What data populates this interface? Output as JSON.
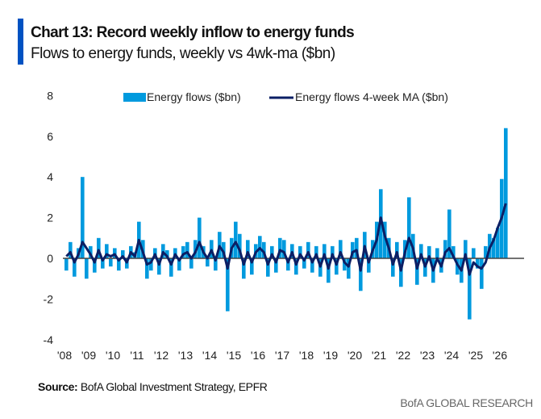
{
  "header": {
    "title": "Chart 13: Record weekly inflow to energy funds",
    "subtitle": "Flows to energy funds, weekly vs 4wk-ma ($bn)"
  },
  "footer": {
    "source_label": "Source:",
    "source_text": " BofA Global Investment Strategy, EPFR",
    "brand": "BofA GLOBAL RESEARCH"
  },
  "chart_data": {
    "type": "bar+line",
    "title": "Chart 13: Record weekly inflow to energy funds",
    "subtitle": "Flows to energy funds, weekly vs 4wk-ma ($bn)",
    "ylim": [
      -4,
      8
    ],
    "yticks": [
      8,
      6,
      4,
      2,
      0,
      -2,
      -4
    ],
    "xlim": [
      "2008-01",
      "2026-12"
    ],
    "xtick_labels": [
      "'08",
      "'09",
      "'10",
      "'11",
      "'12",
      "'13",
      "'14",
      "'15",
      "'16",
      "'17",
      "'18",
      "'19",
      "'20",
      "'21",
      "'22",
      "'23",
      "'24",
      "'25",
      "'26"
    ],
    "grid": false,
    "legend_placement": "top",
    "colors": {
      "flows": "#009ADE",
      "ma": "#0B1F65",
      "zero_line": "#444444"
    },
    "dates": [
      "2008-01",
      "2008-03",
      "2008-05",
      "2008-07",
      "2008-09",
      "2008-11",
      "2009-01",
      "2009-03",
      "2009-05",
      "2009-07",
      "2009-09",
      "2009-11",
      "2010-01",
      "2010-03",
      "2010-05",
      "2010-07",
      "2010-09",
      "2010-11",
      "2011-01",
      "2011-03",
      "2011-05",
      "2011-07",
      "2011-09",
      "2011-11",
      "2012-01",
      "2012-03",
      "2012-05",
      "2012-07",
      "2012-09",
      "2012-11",
      "2013-01",
      "2013-03",
      "2013-05",
      "2013-07",
      "2013-09",
      "2013-11",
      "2014-01",
      "2014-03",
      "2014-05",
      "2014-07",
      "2014-09",
      "2014-11",
      "2015-01",
      "2015-03",
      "2015-05",
      "2015-07",
      "2015-09",
      "2015-11",
      "2016-01",
      "2016-03",
      "2016-05",
      "2016-07",
      "2016-09",
      "2016-11",
      "2017-01",
      "2017-03",
      "2017-05",
      "2017-07",
      "2017-09",
      "2017-11",
      "2018-01",
      "2018-03",
      "2018-05",
      "2018-07",
      "2018-09",
      "2018-11",
      "2019-01",
      "2019-03",
      "2019-05",
      "2019-07",
      "2019-09",
      "2019-11",
      "2020-01",
      "2020-03",
      "2020-05",
      "2020-07",
      "2020-09",
      "2020-11",
      "2021-01",
      "2021-03",
      "2021-05",
      "2021-07",
      "2021-09",
      "2021-11",
      "2022-01",
      "2022-03",
      "2022-05",
      "2022-07",
      "2022-09",
      "2022-11",
      "2023-01",
      "2023-03",
      "2023-05",
      "2023-07",
      "2023-09",
      "2023-11",
      "2024-01",
      "2024-03",
      "2024-05",
      "2024-07",
      "2024-09",
      "2024-11",
      "2025-01",
      "2025-03",
      "2025-05",
      "2025-07",
      "2025-09",
      "2025-11",
      "2026-01",
      "2026-03"
    ],
    "series": [
      {
        "name": "Energy flows ($bn)",
        "kind": "bar",
        "values": [
          -0.6,
          0.8,
          -0.9,
          0.5,
          4.0,
          -1.0,
          0.6,
          -0.7,
          1.0,
          -0.5,
          0.7,
          -0.4,
          0.5,
          -0.6,
          0.4,
          -0.5,
          0.6,
          0.3,
          1.8,
          0.9,
          -1.0,
          -0.6,
          0.5,
          -0.8,
          0.7,
          0.4,
          -0.9,
          0.5,
          -0.6,
          0.6,
          0.8,
          -0.5,
          0.9,
          2.0,
          0.6,
          -0.4,
          0.9,
          -0.6,
          1.3,
          0.8,
          -2.6,
          1.0,
          1.8,
          1.2,
          -1.0,
          0.9,
          -0.8,
          0.7,
          1.1,
          0.8,
          -0.9,
          0.6,
          -0.7,
          1.0,
          0.9,
          -0.6,
          0.7,
          -0.8,
          0.6,
          -0.5,
          0.8,
          -0.7,
          0.6,
          -0.9,
          0.7,
          -1.2,
          0.6,
          -0.8,
          0.9,
          -0.6,
          -1.0,
          0.8,
          1.0,
          -1.6,
          1.3,
          -0.7,
          0.9,
          1.8,
          3.4,
          1.8,
          1.0,
          -0.9,
          0.8,
          -1.4,
          0.9,
          3.0,
          1.2,
          -1.3,
          0.7,
          -0.9,
          0.6,
          -1.2,
          0.5,
          -0.7,
          0.9,
          2.4,
          0.6,
          -0.8,
          -1.2,
          0.9,
          -3.0,
          0.5,
          -0.5,
          -1.5,
          0.6,
          1.2,
          1.0,
          1.5,
          3.9,
          6.4
        ]
      },
      {
        "name": "Energy flows 4-week MA ($bn)",
        "kind": "line",
        "values": [
          0.1,
          0.3,
          -0.2,
          0.2,
          0.8,
          0.5,
          0.2,
          -0.2,
          0.4,
          -0.1,
          0.2,
          0.1,
          0.2,
          -0.1,
          0.1,
          -0.2,
          0.3,
          0.1,
          0.9,
          0.3,
          -0.3,
          -0.2,
          0.2,
          -0.3,
          0.3,
          0.1,
          -0.3,
          0.2,
          -0.1,
          0.2,
          0.3,
          0.0,
          0.3,
          0.8,
          0.3,
          0.0,
          0.4,
          -0.1,
          0.6,
          0.3,
          -0.5,
          0.5,
          0.8,
          0.4,
          -0.3,
          0.3,
          -0.2,
          0.3,
          0.5,
          0.3,
          -0.3,
          0.2,
          -0.2,
          0.4,
          0.3,
          -0.2,
          0.3,
          -0.3,
          0.2,
          -0.1,
          0.3,
          -0.2,
          0.2,
          -0.4,
          0.2,
          -0.5,
          0.2,
          -0.3,
          0.3,
          -0.2,
          -0.4,
          0.3,
          0.4,
          -0.6,
          0.6,
          -0.2,
          0.4,
          0.9,
          2.0,
          1.1,
          0.5,
          -0.3,
          0.3,
          -0.6,
          0.3,
          1.0,
          0.5,
          -0.5,
          0.2,
          -0.4,
          0.1,
          -0.6,
          0.0,
          -0.4,
          0.3,
          0.5,
          0.1,
          -0.3,
          -0.6,
          0.2,
          -0.8,
          -0.2,
          -0.4,
          -0.5,
          -0.2,
          0.5,
          0.9,
          1.5,
          2.0,
          2.7
        ]
      }
    ]
  }
}
